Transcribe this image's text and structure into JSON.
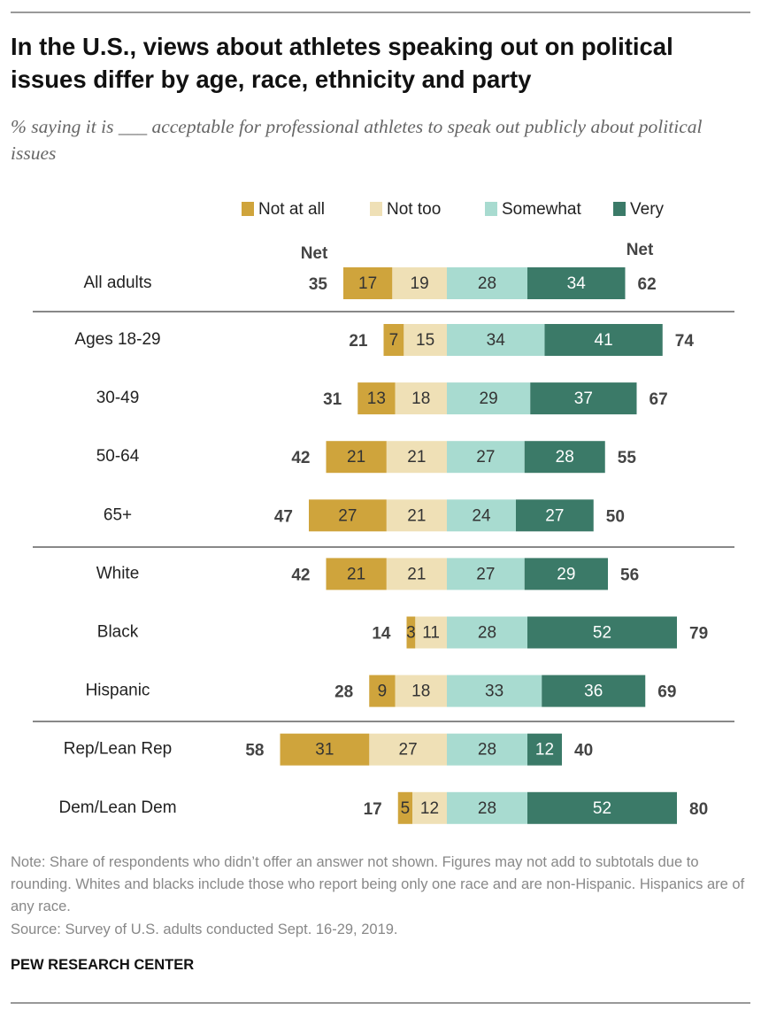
{
  "header": {
    "title": "In the U.S., views about athletes speaking out on political issues differ by age, race, ethnicity and party",
    "subtitle": "% saying it is ___ acceptable for professional athletes to speak out publicly about political issues"
  },
  "chart_data": {
    "type": "diverging_bar",
    "categories": [
      "All adults",
      "Ages 18-29",
      "30-49",
      "50-64",
      "65+",
      "White",
      "Black",
      "Hispanic",
      "Rep/Lean Rep",
      "Dem/Lean Dem"
    ],
    "series": [
      {
        "name": "Not at all",
        "color": "#cfa43c",
        "side": "negative",
        "values": [
          17,
          7,
          13,
          21,
          27,
          21,
          3,
          9,
          31,
          5
        ]
      },
      {
        "name": "Not too",
        "color": "#efe0b6",
        "side": "negative",
        "values": [
          19,
          15,
          18,
          21,
          21,
          21,
          11,
          18,
          27,
          12
        ]
      },
      {
        "name": "Somewhat",
        "color": "#a8dbd0",
        "side": "positive",
        "values": [
          28,
          34,
          29,
          27,
          24,
          27,
          28,
          33,
          28,
          28
        ]
      },
      {
        "name": "Very",
        "color": "#3b7a68",
        "side": "positive",
        "values": [
          34,
          41,
          37,
          28,
          27,
          29,
          52,
          36,
          12,
          52
        ]
      }
    ],
    "net_negative": {
      "label": "Net",
      "values": [
        35,
        21,
        31,
        42,
        47,
        42,
        14,
        28,
        58,
        17
      ]
    },
    "net_positive": {
      "label": "Net",
      "values": [
        62,
        74,
        67,
        55,
        50,
        56,
        79,
        69,
        40,
        80
      ]
    }
  },
  "footer": {
    "note": "Note: Share of respondents who didn’t offer an answer not shown. Figures may not add to subtotals due to rounding. Whites and blacks include those who report being only one race and are non-Hispanic. Hispanics are of any race.",
    "source": "Source: Survey of U.S. adults conducted Sept. 16-29, 2019.",
    "brand": "PEW RESEARCH CENTER"
  }
}
